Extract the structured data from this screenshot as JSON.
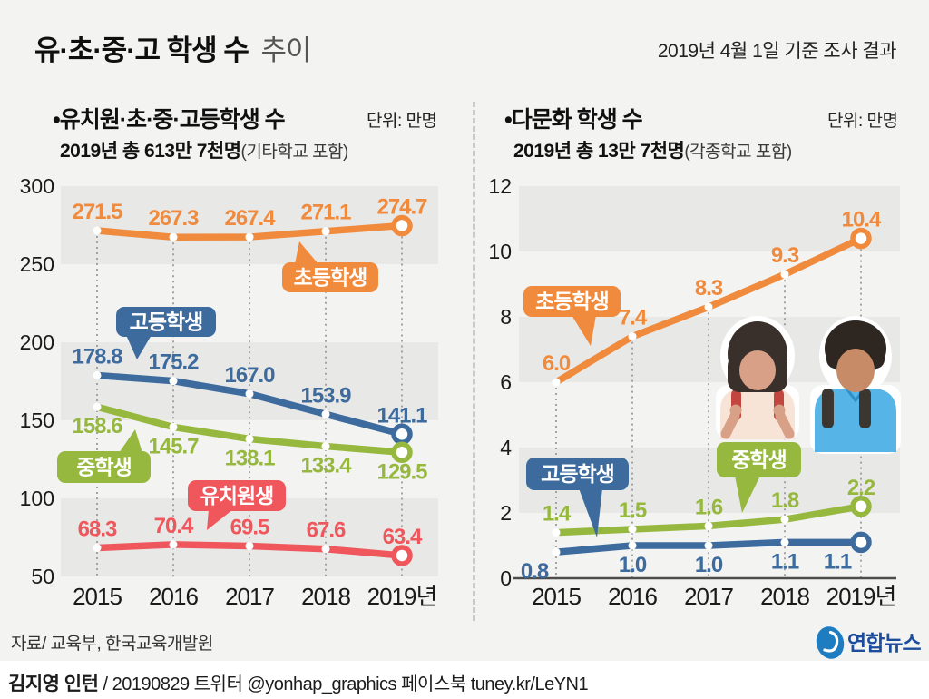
{
  "header": {
    "title_strong": "유·초·중·고 학생 수",
    "title_light": "추이",
    "survey_note": "2019년 4월 1일 기준 조사 결과"
  },
  "footer": {
    "source": "자료/ 교육부, 한국교육개발원",
    "credit_name": "김지영 인턴",
    "credit_rest": " / 20190829 트위터 @yonhap_graphics  페이스북 tuney.kr/LeYN1",
    "logo_text": "연합뉴스"
  },
  "colors": {
    "elementary_orange": "#f08a3c",
    "high_blue": "#3d6b9d",
    "middle_green": "#96b83e",
    "kindergarten_red": "#ef575c",
    "band_gray": "#e8e8e7",
    "dotted_gray": "#a3a3a3",
    "axis_text": "#1a1a1a",
    "logo_blue": "#1e7cc1",
    "logo_text_blue": "#1c4c9c"
  },
  "illustration": {
    "girl": {
      "hair": "#39302b",
      "skin": "#d8a087",
      "shirt": "#f7e4d6",
      "strap": "#c2463e"
    },
    "boy": {
      "hair": "#2e2621",
      "skin": "#c78c67",
      "shirt": "#57b4e6",
      "strap": "#3c3631"
    }
  },
  "chart_data": [
    {
      "type": "line",
      "title": "•유치원·초·중·고등학생 수",
      "unit": "단위: 만명",
      "subtitle_total": "2019년 총 613만 7천명",
      "subtitle_note": "(기타학교 포함)",
      "categories": [
        "2015",
        "2016",
        "2017",
        "2018",
        "2019년"
      ],
      "ylim": [
        50,
        300
      ],
      "yticks": [
        300,
        250,
        200,
        150,
        100,
        50
      ],
      "grid": "alternating-bands",
      "legend_position": "speech-bubbles-on-plot",
      "series": [
        {
          "key": "elementary",
          "name": "초등학생",
          "color": "#f08a3c",
          "values": [
            271.5,
            267.3,
            267.4,
            271.1,
            274.7
          ],
          "value_labels": [
            "271.5",
            "267.3",
            "267.4",
            "271.1",
            "274.7"
          ],
          "label_side": "above"
        },
        {
          "key": "high-school",
          "name": "고등학생",
          "color": "#3d6b9d",
          "values": [
            178.8,
            175.2,
            167.0,
            153.9,
            141.1
          ],
          "value_labels": [
            "178.8",
            "175.2",
            "167.0",
            "153.9",
            "141.1"
          ],
          "label_side": "above"
        },
        {
          "key": "middle-school",
          "name": "중학생",
          "color": "#96b83e",
          "values": [
            158.6,
            145.7,
            138.1,
            133.4,
            129.5
          ],
          "value_labels": [
            "158.6",
            "145.7",
            "138.1",
            "133.4",
            "129.5"
          ],
          "label_side": "below"
        },
        {
          "key": "kindergarten",
          "name": "유치원생",
          "color": "#ef575c",
          "values": [
            68.3,
            70.4,
            69.5,
            67.6,
            63.4
          ],
          "value_labels": [
            "68.3",
            "70.4",
            "69.5",
            "67.6",
            "63.4"
          ],
          "label_side": "above"
        }
      ]
    },
    {
      "type": "line",
      "title": "•다문화 학생 수",
      "unit": "단위: 만명",
      "subtitle_total": "2019년 총 13만 7천명",
      "subtitle_note": "(각종학교 포함)",
      "categories": [
        "2015",
        "2016",
        "2017",
        "2018",
        "2019년"
      ],
      "ylim": [
        0,
        12
      ],
      "yticks": [
        12,
        10,
        8,
        6,
        4,
        2,
        0
      ],
      "grid": "alternating-bands",
      "legend_position": "speech-bubbles-on-plot",
      "series": [
        {
          "key": "elementary",
          "name": "초등학생",
          "color": "#f08a3c",
          "values": [
            6.0,
            7.4,
            8.3,
            9.3,
            10.4
          ],
          "value_labels": [
            "6.0",
            "7.4",
            "8.3",
            "9.3",
            "10.4"
          ],
          "label_side": "above"
        },
        {
          "key": "middle-school",
          "name": "중학생",
          "color": "#96b83e",
          "values": [
            1.4,
            1.5,
            1.6,
            1.8,
            2.2
          ],
          "value_labels": [
            "1.4",
            "1.5",
            "1.6",
            "1.8",
            "2.2"
          ],
          "label_side": "above"
        },
        {
          "key": "high-school",
          "name": "고등학생",
          "color": "#3d6b9d",
          "values": [
            0.8,
            1.0,
            1.0,
            1.1,
            1.1
          ],
          "value_labels": [
            "0.8",
            "1.0",
            "1.0",
            "1.1",
            "1.1"
          ],
          "label_side": "below",
          "label_dx": [
            -24,
            0,
            0,
            0,
            -26
          ]
        }
      ]
    }
  ]
}
